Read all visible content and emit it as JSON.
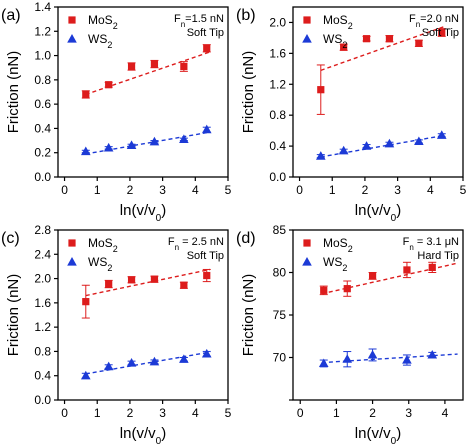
{
  "chart_data": [
    {
      "type": "scatter",
      "panel_label": "(a)",
      "xlabel": "ln(v/v₀)",
      "ylabel": "Friction (nN)",
      "xlim": [
        -0.2,
        5
      ],
      "ylim": [
        0.0,
        1.4
      ],
      "xticks": [
        0,
        1,
        2,
        3,
        4,
        5
      ],
      "yticks": [
        0.0,
        0.2,
        0.4,
        0.6,
        0.8,
        1.0,
        1.2,
        1.4
      ],
      "ytick_labels": [
        "0.0",
        "0.2",
        "0.4",
        "0.6",
        "0.8",
        "1.0",
        "1.2",
        "1.4"
      ],
      "annotations": [
        "Fn=1.5 nN",
        "Soft Tip"
      ],
      "legend": "top-left",
      "series": [
        {
          "name": "MoS2",
          "color": "#dd1c1c",
          "marker": "square",
          "x": [
            0.65,
            1.35,
            2.05,
            2.75,
            3.65,
            4.35
          ],
          "y": [
            0.68,
            0.76,
            0.91,
            0.93,
            0.91,
            1.06
          ],
          "err": [
            0.03,
            0.02,
            0.03,
            0.03,
            0.04,
            0.03
          ],
          "fit": [
            [
              0.65,
              0.68
            ],
            [
              4.45,
              1.03
            ]
          ]
        },
        {
          "name": "WS2",
          "color": "#1c3ad6",
          "marker": "triangle",
          "x": [
            0.65,
            1.35,
            2.05,
            2.75,
            3.65,
            4.35
          ],
          "y": [
            0.21,
            0.24,
            0.26,
            0.29,
            0.31,
            0.39
          ],
          "err": [
            0.01,
            0.01,
            0.01,
            0.01,
            0.01,
            0.02
          ],
          "fit": [
            [
              0.65,
              0.19
            ],
            [
              4.45,
              0.37
            ]
          ]
        }
      ]
    },
    {
      "type": "scatter",
      "panel_label": "(b)",
      "xlabel": "ln(v/v₀)",
      "ylabel": "Friction (nN)",
      "xlim": [
        -0.2,
        5
      ],
      "ylim": [
        0.0,
        2.2
      ],
      "xticks": [
        0,
        1,
        2,
        3,
        4,
        5
      ],
      "yticks": [
        0.0,
        0.4,
        0.8,
        1.2,
        1.6,
        2.0
      ],
      "ytick_labels": [
        "0.0",
        "0.4",
        "0.8",
        "1.2",
        "1.6",
        "2.0"
      ],
      "annotations": [
        "Fn=2.0 nN",
        "Soft Tip"
      ],
      "legend": "top-left",
      "series": [
        {
          "name": "MoS2",
          "color": "#dd1c1c",
          "marker": "square",
          "x": [
            0.65,
            1.35,
            2.05,
            2.75,
            3.65,
            4.35
          ],
          "y": [
            1.13,
            1.68,
            1.79,
            1.79,
            1.73,
            1.87
          ],
          "err": [
            0.32,
            0.04,
            0.03,
            0.04,
            0.04,
            0.05
          ],
          "fit": [
            [
              0.65,
              1.38
            ],
            [
              4.45,
              1.95
            ]
          ]
        },
        {
          "name": "WS2",
          "color": "#1c3ad6",
          "marker": "triangle",
          "x": [
            0.65,
            1.35,
            2.05,
            2.75,
            3.65,
            4.35
          ],
          "y": [
            0.27,
            0.34,
            0.4,
            0.43,
            0.46,
            0.54
          ],
          "err": [
            0.02,
            0.02,
            0.02,
            0.02,
            0.02,
            0.02
          ],
          "fit": [
            [
              0.65,
              0.26
            ],
            [
              4.45,
              0.54
            ]
          ]
        }
      ]
    },
    {
      "type": "scatter",
      "panel_label": "(c)",
      "xlabel": "ln(v/v₀)",
      "ylabel": "Friction (nN)",
      "xlim": [
        -0.2,
        5
      ],
      "ylim": [
        0.0,
        2.8
      ],
      "xticks": [
        0,
        1,
        2,
        3,
        4,
        5
      ],
      "yticks": [
        0.0,
        0.4,
        0.8,
        1.2,
        1.6,
        2.0,
        2.4,
        2.8
      ],
      "ytick_labels": [
        "0.0",
        "0.4",
        "0.8",
        "1.2",
        "1.6",
        "2.0",
        "2.4",
        "2.8"
      ],
      "annotations": [
        "Fn = 2.5 nN",
        "Soft Tip"
      ],
      "legend": "top-left",
      "series": [
        {
          "name": "MoS2",
          "color": "#dd1c1c",
          "marker": "square",
          "x": [
            0.65,
            1.35,
            2.05,
            2.75,
            3.65,
            4.35
          ],
          "y": [
            1.62,
            1.91,
            1.98,
            1.99,
            1.89,
            2.05
          ],
          "err": [
            0.27,
            0.06,
            0.05,
            0.05,
            0.05,
            0.1
          ],
          "fit": [
            [
              0.65,
              1.72
            ],
            [
              4.45,
              2.15
            ]
          ]
        },
        {
          "name": "WS2",
          "color": "#1c3ad6",
          "marker": "triangle",
          "x": [
            0.65,
            1.35,
            2.05,
            2.75,
            3.65,
            4.35
          ],
          "y": [
            0.4,
            0.55,
            0.61,
            0.63,
            0.67,
            0.76
          ],
          "err": [
            0.04,
            0.03,
            0.03,
            0.03,
            0.03,
            0.04
          ],
          "fit": [
            [
              0.65,
              0.43
            ],
            [
              4.45,
              0.79
            ]
          ]
        }
      ]
    },
    {
      "type": "scatter",
      "panel_label": "(d)",
      "xlabel": "ln(v/v₀)",
      "ylabel": "Friction (nN)",
      "xlim": [
        -0.2,
        4.5
      ],
      "ylim": [
        65,
        85
      ],
      "xticks": [
        0,
        1,
        2,
        3,
        4
      ],
      "yticks": [
        65,
        70,
        75,
        80,
        85
      ],
      "ytick_labels": [
        "",
        "70",
        "75",
        "80",
        "85"
      ],
      "annotations": [
        "Fn = 3.1 μN",
        "Hard Tip"
      ],
      "legend": "top-left",
      "series": [
        {
          "name": "MoS2",
          "color": "#dd1c1c",
          "marker": "square",
          "x": [
            0.65,
            1.3,
            2.0,
            2.95,
            3.65
          ],
          "y": [
            77.9,
            78.1,
            79.6,
            80.3,
            80.6
          ],
          "err": [
            0.5,
            0.9,
            0.4,
            0.9,
            0.6
          ],
          "fit": [
            [
              0.6,
              77.5
            ],
            [
              4.35,
              81.1
            ]
          ]
        },
        {
          "name": "WS2",
          "color": "#1c3ad6",
          "marker": "triangle",
          "x": [
            0.65,
            1.3,
            2.0,
            2.95,
            3.65
          ],
          "y": [
            69.3,
            69.8,
            70.3,
            69.7,
            70.3
          ],
          "err": [
            0.4,
            0.9,
            0.7,
            0.6,
            0.3
          ],
          "fit": [
            [
              0.6,
              69.4
            ],
            [
              4.35,
              70.4
            ]
          ]
        }
      ]
    }
  ]
}
